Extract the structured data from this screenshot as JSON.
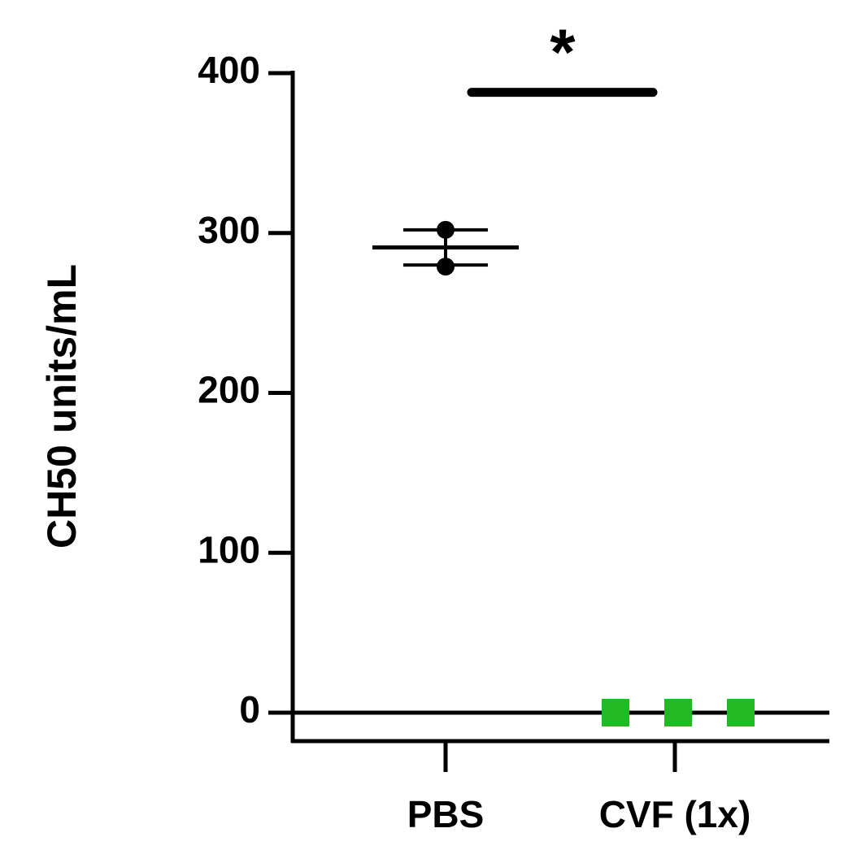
{
  "chart_data": {
    "type": "scatter",
    "title": "",
    "xlabel": "",
    "ylabel": "CH50 units/mL",
    "ylim": [
      0,
      400
    ],
    "yticks": [
      0,
      100,
      200,
      300,
      400
    ],
    "yticklabels": [
      "0",
      "100",
      "200",
      "300",
      "400"
    ],
    "categories": [
      "PBS",
      "CVF (1x)"
    ],
    "grid": false,
    "reference_line_y": 0,
    "series": [
      {
        "category": "PBS",
        "marker": "circle",
        "color": "#000000",
        "points": [
          302,
          279
        ],
        "mean": 291,
        "error": 11
      },
      {
        "category": "CVF (1x)",
        "marker": "square",
        "color": "#22b922",
        "points": [
          0,
          0,
          0
        ]
      }
    ],
    "annotations": [
      {
        "text": "*",
        "between": [
          "PBS",
          "CVF (1x)"
        ],
        "y": 388
      }
    ]
  }
}
